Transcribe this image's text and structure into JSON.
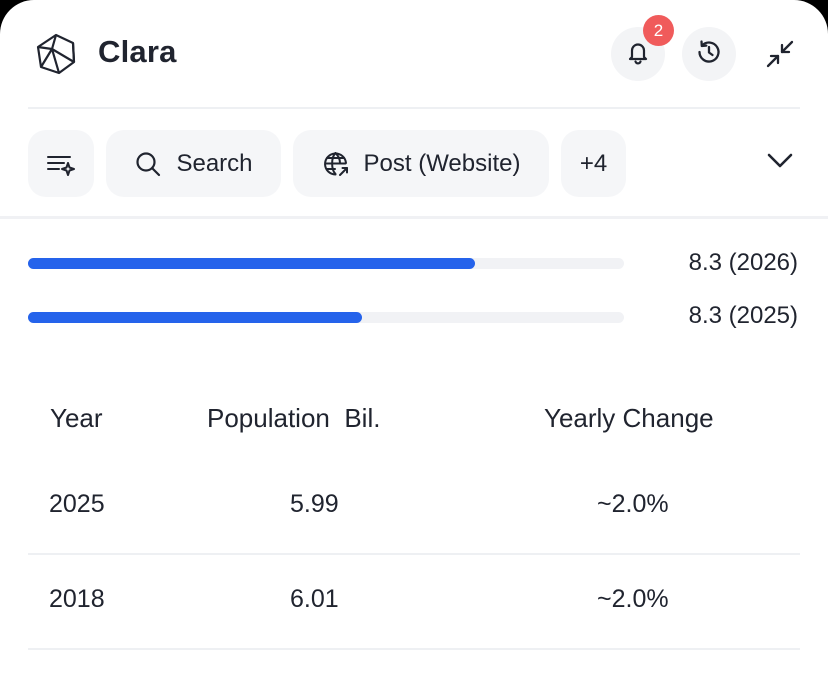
{
  "header": {
    "app_title": "Clara",
    "notification_count": "2",
    "icons": [
      "logo-icon",
      "bell-icon",
      "history-icon",
      "collapse-icon"
    ]
  },
  "filters": {
    "search_label": "Search",
    "post_label": "Post (Website)",
    "more_label": "+4"
  },
  "bars": [
    {
      "label": "8.3 (2026)",
      "fill_percent": 75
    },
    {
      "label": "8.3 (2025)",
      "fill_percent": 56
    }
  ],
  "table": {
    "headers": {
      "year": "Year",
      "population": "Population  Bil.",
      "change": "Yearly Change"
    },
    "rows": [
      {
        "year": "2025",
        "population": "5.99",
        "change": "~2.0%"
      },
      {
        "year": "2018",
        "population": "6.01",
        "change": "~2.0%"
      }
    ]
  },
  "colors": {
    "accent": "#2563eb",
    "badge": "#f05b5b"
  }
}
